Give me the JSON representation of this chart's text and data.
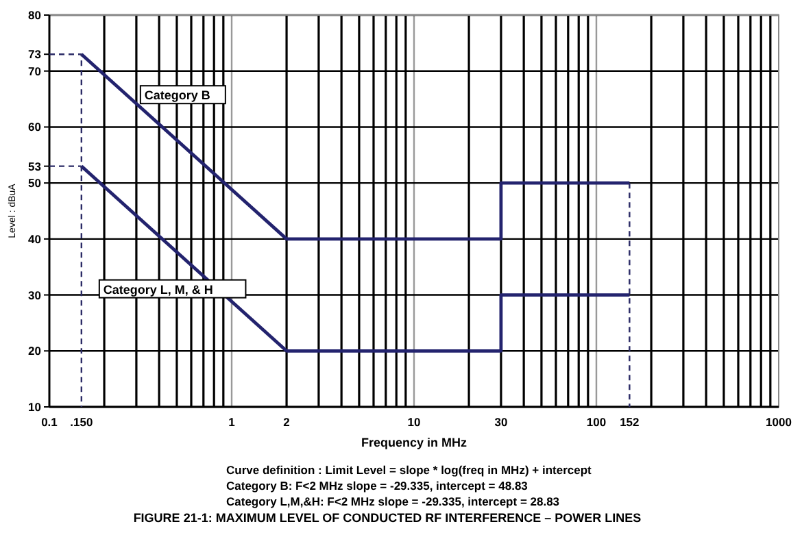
{
  "chart_data": {
    "type": "line",
    "title": "FIGURE 21-1: MAXIMUM LEVEL OF CONDUCTED RF INTERFERENCE – POWER LINES",
    "xlabel": "Frequency in MHz",
    "ylabel": "Level : dBuA",
    "annotations": [
      "Curve definition : Limit Level = slope * log(freq in MHz) + intercept",
      "Category B: F<2 MHz slope = -29.335, intercept = 48.83",
      "Category L,M,&H: F<2 MHz slope = -29.335, intercept = 28.83"
    ],
    "log": "x",
    "grid": true,
    "marker": "none",
    "xlim": [
      0.1,
      1000
    ],
    "xticks": [
      0.1,
      {
        "value": 0.15,
        "label": ".150"
      },
      1,
      2,
      10,
      30,
      100,
      152,
      1000
    ],
    "ylim": [
      10,
      80
    ],
    "yticks": [
      10,
      20,
      30,
      40,
      50,
      {
        "value": 53,
        "label": "53"
      },
      60,
      70,
      {
        "value": 73,
        "label": "73"
      },
      80
    ],
    "series": [
      {
        "name": "Category B",
        "color": "#23236e",
        "line_style": "solid",
        "x": [
          0.15,
          2,
          30,
          30,
          152
        ],
        "values": [
          73,
          40,
          40,
          50,
          50
        ]
      },
      {
        "name": "Category L, M, & H",
        "color": "#23236e",
        "line_style": "solid",
        "x": [
          0.15,
          2,
          30,
          30,
          152
        ],
        "values": [
          53,
          20,
          20,
          30,
          30
        ]
      },
      {
        "color": "#2b2b66",
        "line_style": "dashed",
        "x": [
          0.1,
          0.15,
          0.15
        ],
        "values": [
          73,
          73,
          10
        ]
      },
      {
        "color": "#2b2b66",
        "line_style": "dashed",
        "x": [
          0.1,
          0.15
        ],
        "values": [
          53,
          53
        ]
      },
      {
        "color": "#2b2b66",
        "line_style": "dashed",
        "x": [
          152,
          152
        ],
        "values": [
          50,
          10
        ]
      }
    ]
  }
}
